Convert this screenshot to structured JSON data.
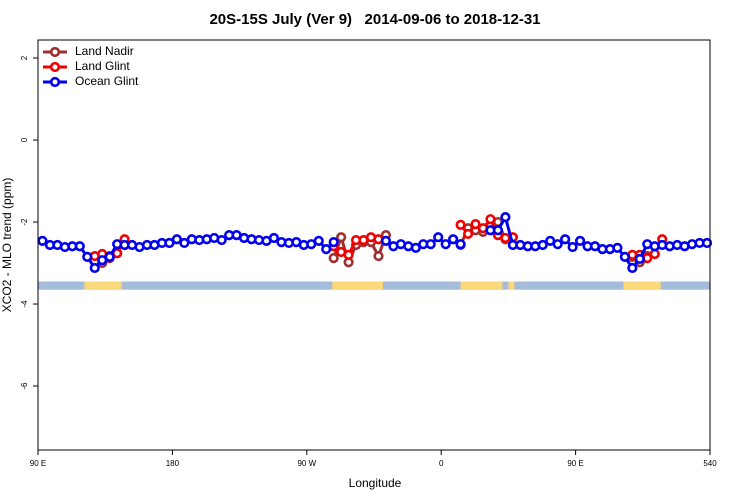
{
  "chart_data": {
    "type": "line",
    "title": "20S-15S July (Ver 9)   2014-09-06 to 2018-12-31",
    "x_label": "Longitude",
    "y_label": "XCO2 - MLO trend (ppm)",
    "xlim": [
      90,
      540
    ],
    "xticks": [
      {
        "value": 90,
        "label": "90 E"
      },
      180,
      {
        "value": 270,
        "label": "90 W"
      },
      {
        "value": 360,
        "label": "0"
      },
      {
        "value": 450,
        "label": "90 E"
      },
      540
    ],
    "ylim": [
      -7.56,
      2.44
    ],
    "yticks": [
      2,
      0,
      -2,
      -4,
      -6
    ],
    "legend": "top-left",
    "surface_band": {
      "y": [
        -3.45,
        -3.65
      ],
      "ocean_color": "#a4bcdc",
      "land_color": "#fcd87c",
      "land": [
        [
          121,
          146
        ],
        [
          287,
          321
        ],
        [
          373,
          401
        ],
        [
          405,
          409
        ],
        [
          482,
          507
        ]
      ]
    },
    "series": [
      {
        "name": "Land Nadir",
        "color": "#a03030",
        "x": [
          133,
          138,
          143,
          null,
          288,
          293,
          298,
          303,
          308,
          313,
          318,
          323,
          null,
          373,
          378,
          383,
          388,
          393,
          398,
          403,
          null,
          488,
          493,
          498,
          503
        ],
        "values": [
          -3.0,
          -2.88,
          -2.76,
          null,
          -2.88,
          -2.37,
          -2.98,
          -2.56,
          -2.49,
          -2.49,
          -2.83,
          -2.32,
          null,
          -2.56,
          -2.15,
          -2.2,
          -2.24,
          -2.1,
          -2.0,
          -2.42,
          null,
          -2.85,
          -2.98,
          -2.83,
          -2.78
        ]
      },
      {
        "name": "Land Glint",
        "color": "#ee0000",
        "x": [
          128,
          133,
          138,
          143,
          148,
          null,
          178,
          null,
          288,
          293,
          298,
          303,
          308,
          313,
          318,
          null,
          373,
          378,
          383,
          388,
          393,
          398,
          403,
          408,
          null,
          488,
          493,
          498,
          503,
          508
        ],
        "values": [
          -2.83,
          -2.78,
          -2.83,
          -2.76,
          -2.42,
          null,
          -2.51,
          null,
          -2.59,
          -2.73,
          -2.8,
          -2.44,
          -2.44,
          -2.37,
          -2.42,
          null,
          -2.07,
          -2.29,
          -2.05,
          -2.15,
          -1.93,
          -2.32,
          -2.39,
          -2.37,
          null,
          -2.8,
          -2.8,
          -2.88,
          -2.78,
          -2.42
        ]
      },
      {
        "name": "Ocean Glint",
        "color": "#0000ee",
        "x": [
          93,
          98,
          103,
          108,
          113,
          118,
          123,
          128,
          133,
          138,
          143,
          148,
          153,
          158,
          163,
          168,
          173,
          178,
          183,
          188,
          193,
          198,
          203,
          208,
          213,
          218,
          223,
          228,
          233,
          238,
          243,
          248,
          253,
          258,
          263,
          268,
          273,
          278,
          283,
          288,
          293,
          298,
          303,
          308,
          313,
          318,
          323,
          328,
          333,
          338,
          343,
          348,
          353,
          358,
          363,
          368,
          373,
          378,
          383,
          388,
          393,
          398,
          403,
          408,
          413,
          418,
          423,
          428,
          433,
          438,
          443,
          448,
          453,
          458,
          463,
          468,
          473,
          478,
          483,
          488,
          493,
          498,
          503,
          508,
          513,
          518,
          523,
          528,
          533,
          538
        ],
        "values": [
          -2.46,
          -2.56,
          -2.56,
          -2.61,
          -2.59,
          -2.59,
          -2.85,
          -3.12,
          -2.93,
          -2.85,
          -2.54,
          -2.56,
          -2.56,
          -2.61,
          -2.56,
          -2.56,
          -2.51,
          -2.51,
          -2.42,
          -2.51,
          -2.42,
          -2.44,
          -2.42,
          -2.39,
          -2.44,
          -2.32,
          -2.32,
          -2.39,
          -2.42,
          -2.44,
          -2.46,
          -2.39,
          -2.49,
          -2.51,
          -2.49,
          -2.56,
          -2.54,
          -2.46,
          -2.66,
          -2.49,
          null,
          null,
          null,
          null,
          null,
          null,
          -2.46,
          -2.59,
          -2.54,
          -2.59,
          -2.63,
          -2.54,
          -2.54,
          -2.37,
          -2.54,
          -2.42,
          -2.54,
          null,
          null,
          null,
          -2.2,
          -2.2,
          -1.88,
          -2.56,
          -2.56,
          -2.59,
          -2.59,
          -2.56,
          -2.46,
          -2.54,
          -2.42,
          -2.61,
          -2.46,
          -2.59,
          -2.59,
          -2.66,
          -2.66,
          -2.63,
          -2.85,
          -3.12,
          -2.9,
          -2.54,
          -2.59,
          -2.56,
          -2.59,
          -2.56,
          -2.59,
          -2.54,
          -2.51,
          -2.51
        ]
      }
    ]
  }
}
